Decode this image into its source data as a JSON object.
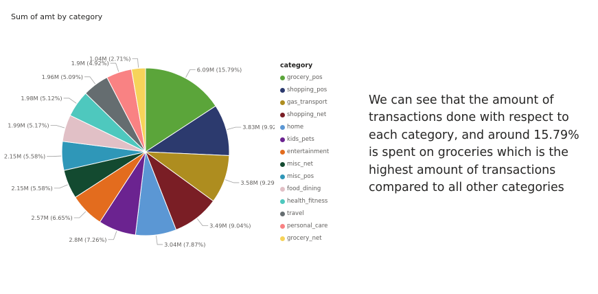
{
  "chart_data": {
    "type": "pie",
    "title": "Sum of amt by category",
    "legend_title": "category",
    "legend_position": "right",
    "slices": [
      {
        "name": "grocery_pos",
        "value": 6.09,
        "label": "6.09M (15.79%)",
        "color": "#5ba53a"
      },
      {
        "name": "shopping_pos",
        "value": 3.83,
        "label": "3.83M (9.92%)",
        "color": "#2c3a6e"
      },
      {
        "name": "gas_transport",
        "value": 3.58,
        "label": "3.58M (9.29%)",
        "color": "#ae8d1f"
      },
      {
        "name": "shopping_net",
        "value": 3.49,
        "label": "3.49M (9.04%)",
        "color": "#7a1e25"
      },
      {
        "name": "home",
        "value": 3.04,
        "label": "3.04M (7.87%)",
        "color": "#5b97d4"
      },
      {
        "name": "kids_pets",
        "value": 2.8,
        "label": "2.8M (7.26%)",
        "color": "#6b2390"
      },
      {
        "name": "entertainment",
        "value": 2.57,
        "label": "2.57M (6.65%)",
        "color": "#e36c1e"
      },
      {
        "name": "misc_net",
        "value": 2.15,
        "label": "2.15M (5.58%)",
        "color": "#134a30"
      },
      {
        "name": "misc_pos",
        "value": 2.15,
        "label": "2.15M (5.58%)",
        "color": "#2f97b8"
      },
      {
        "name": "food_dining",
        "value": 1.99,
        "label": "1.99M (5.17%)",
        "color": "#e1c0c6"
      },
      {
        "name": "health_fitness",
        "value": 1.98,
        "label": "1.98M (5.12%)",
        "color": "#4ec8be"
      },
      {
        "name": "travel",
        "value": 1.96,
        "label": "1.96M (5.09%)",
        "color": "#656d70"
      },
      {
        "name": "personal_care",
        "value": 1.9,
        "label": "1.9M (4.92%)",
        "color": "#f98283"
      },
      {
        "name": "grocery_net",
        "value": 1.04,
        "label": "1.04M (2.71%)",
        "color": "#f6d35a"
      }
    ]
  },
  "insight_text": "We can see that the amount of transactions done with respect to each category, and around 15.79% is spent on groceries which is the highest amount of transactions compared to all other categories"
}
